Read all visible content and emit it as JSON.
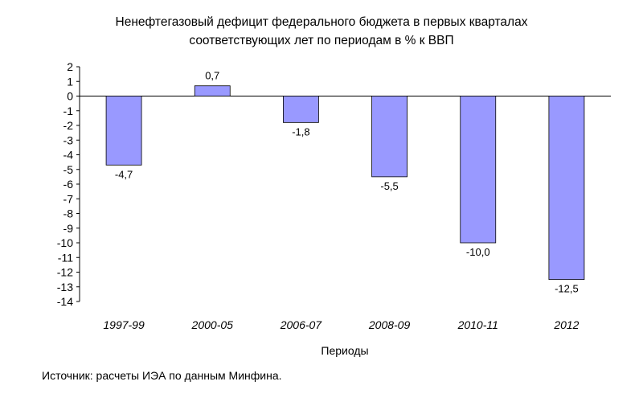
{
  "chart_data": {
    "type": "bar",
    "title_lines": [
      "Ненефтегазовый дефицит федерального бюджета в первых кварталах",
      "соответствующих лет по периодам в % к ВВП"
    ],
    "xlabel": "Периоды",
    "ylabel": "",
    "categories": [
      "1997-99",
      "2000-05",
      "2006-07",
      "2008-09",
      "2010-11",
      "2012"
    ],
    "values": [
      -4.7,
      0.7,
      -1.8,
      -5.5,
      -10.0,
      -12.5
    ],
    "data_labels": [
      "-4,7",
      "0,7",
      "-1,8",
      "-5,5",
      "-10,0",
      "-12,5"
    ],
    "ylim": [
      -14,
      2
    ],
    "yticks": [
      "2",
      "1",
      "0",
      "-1",
      "-2",
      "-3",
      "-4",
      "-5",
      "-6",
      "-7",
      "-8",
      "-9",
      "-10",
      "-11",
      "-12",
      "-13",
      "-14"
    ],
    "grid": false,
    "legend": "none",
    "bar_color": "#9999ff",
    "bar_edge_color": "#000000"
  },
  "source_note": "Источник: расчеты ИЭА  по данным Минфина."
}
